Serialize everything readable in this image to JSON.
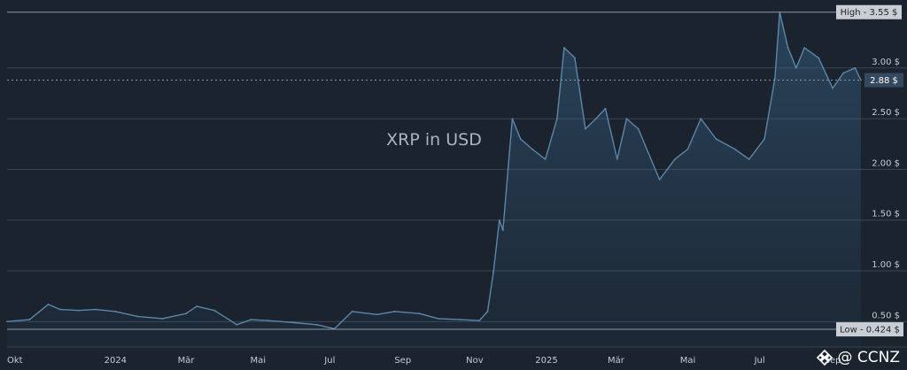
{
  "chart_data": {
    "type": "area",
    "title": "XRP in USD",
    "x_start": "2023-10-01",
    "x_end": "2025-09-25",
    "ylim": [
      0.25,
      3.6
    ],
    "y_ticks": [
      {
        "value": 0.5,
        "label": "0.50 $"
      },
      {
        "value": 1.0,
        "label": "1.00 $"
      },
      {
        "value": 1.5,
        "label": "1.50 $"
      },
      {
        "value": 2.0,
        "label": "2.00 $"
      },
      {
        "value": 2.5,
        "label": "2.50 $"
      },
      {
        "value": 3.0,
        "label": "3.00 $"
      }
    ],
    "x_ticks": [
      {
        "date": "2023-10-01",
        "label": "Okt"
      },
      {
        "date": "2024-01-01",
        "label": "2024"
      },
      {
        "date": "2024-03-01",
        "label": "Mär"
      },
      {
        "date": "2024-05-01",
        "label": "Mai"
      },
      {
        "date": "2024-07-01",
        "label": "Jul"
      },
      {
        "date": "2024-09-01",
        "label": "Sep"
      },
      {
        "date": "2024-11-01",
        "label": "Nov"
      },
      {
        "date": "2025-01-01",
        "label": "2025"
      },
      {
        "date": "2025-03-01",
        "label": "Mär"
      },
      {
        "date": "2025-05-01",
        "label": "Mai"
      },
      {
        "date": "2025-07-01",
        "label": "Jul"
      },
      {
        "date": "2025-09-01",
        "label": "Sep"
      }
    ],
    "high": {
      "value": 3.55,
      "label": "High - 3.55 $"
    },
    "low": {
      "value": 0.424,
      "label": "Low - 0.424 $"
    },
    "current": {
      "value": 2.88,
      "label": "2.88 $"
    },
    "series": [
      {
        "x": [
          "2023-10-01",
          "2023-10-20",
          "2023-11-05",
          "2023-11-15",
          "2023-12-01",
          "2023-12-15",
          "2024-01-01",
          "2024-01-20",
          "2024-02-10",
          "2024-03-01",
          "2024-03-10",
          "2024-03-25",
          "2024-04-13",
          "2024-04-25",
          "2024-05-10",
          "2024-06-01",
          "2024-06-20",
          "2024-07-05",
          "2024-07-20",
          "2024-08-10",
          "2024-08-25",
          "2024-09-15",
          "2024-10-01",
          "2024-10-20",
          "2024-11-05",
          "2024-11-12",
          "2024-11-17",
          "2024-11-22",
          "2024-11-25",
          "2024-12-03",
          "2024-12-10",
          "2024-12-20",
          "2024-12-31",
          "2025-01-10",
          "2025-01-16",
          "2025-01-25",
          "2025-02-03",
          "2025-02-12",
          "2025-02-20",
          "2025-03-02",
          "2025-03-10",
          "2025-03-20",
          "2025-04-07",
          "2025-04-20",
          "2025-05-01",
          "2025-05-12",
          "2025-05-25",
          "2025-06-10",
          "2025-06-22",
          "2025-07-05",
          "2025-07-14",
          "2025-07-18",
          "2025-07-25",
          "2025-08-01",
          "2025-08-08",
          "2025-08-20",
          "2025-09-01",
          "2025-09-10",
          "2025-09-20",
          "2025-09-25"
        ],
        "y": [
          0.5,
          0.52,
          0.67,
          0.62,
          0.61,
          0.62,
          0.6,
          0.55,
          0.53,
          0.58,
          0.65,
          0.61,
          0.47,
          0.52,
          0.51,
          0.49,
          0.47,
          0.43,
          0.6,
          0.57,
          0.6,
          0.58,
          0.53,
          0.52,
          0.51,
          0.6,
          0.99,
          1.5,
          1.4,
          2.5,
          2.3,
          2.2,
          2.1,
          2.5,
          3.2,
          3.1,
          2.4,
          2.5,
          2.6,
          2.1,
          2.5,
          2.4,
          1.9,
          2.1,
          2.2,
          2.5,
          2.3,
          2.2,
          2.1,
          2.3,
          2.9,
          3.55,
          3.2,
          3.0,
          3.2,
          3.1,
          2.8,
          2.95,
          3.0,
          2.88
        ]
      }
    ]
  },
  "watermark": {
    "text": "@ CCNZ",
    "icon": "binance-diamond-icon"
  }
}
